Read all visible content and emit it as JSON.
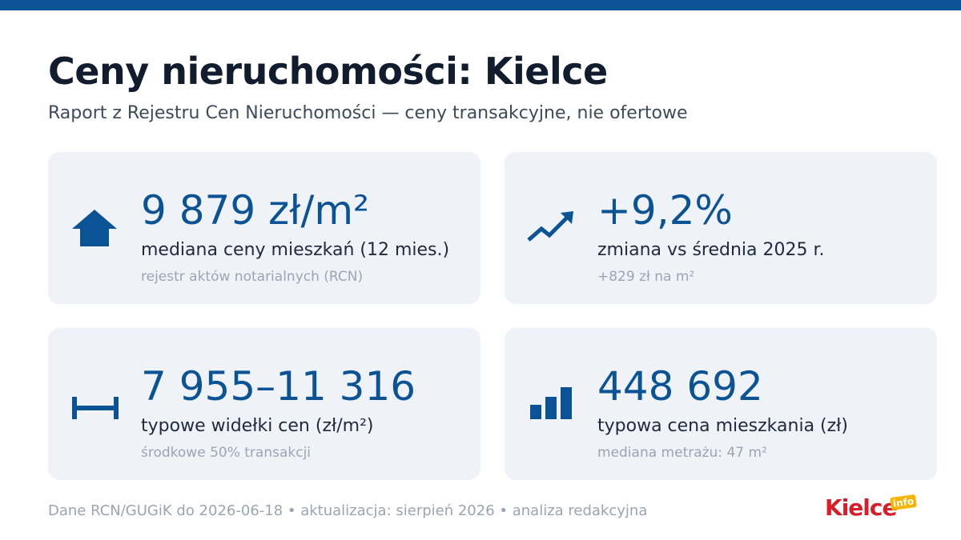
{
  "header": {
    "title": "Ceny nieruchomości: Kielce",
    "subtitle": "Raport z Rejestru Cen Nieruchomości — ceny transakcyjne, nie ofertowe"
  },
  "cards": [
    {
      "value": "9 879 zł/m²",
      "label": "mediana ceny mieszkań (12 mies.)",
      "note": "rejestr aktów notarialnych (RCN)"
    },
    {
      "value": "+9,2%",
      "label": "zmiana vs średnia 2025 r.",
      "note": "+829 zł na m²"
    },
    {
      "value": "7 955–11 316",
      "label": "typowe widełki cen (zł/m²)",
      "note": "środkowe 50% transakcji"
    },
    {
      "value": "448 692",
      "label": "typowa cena mieszkania (zł)",
      "note": "mediana metrażu: 47 m²"
    }
  ],
  "footer": {
    "source": "Dane RCN/GUGiK do 2026-06-18 • aktualizacja: sierpień 2026 • analiza redakcyjna",
    "logo": "Kielce",
    "logo_badge": "info"
  }
}
